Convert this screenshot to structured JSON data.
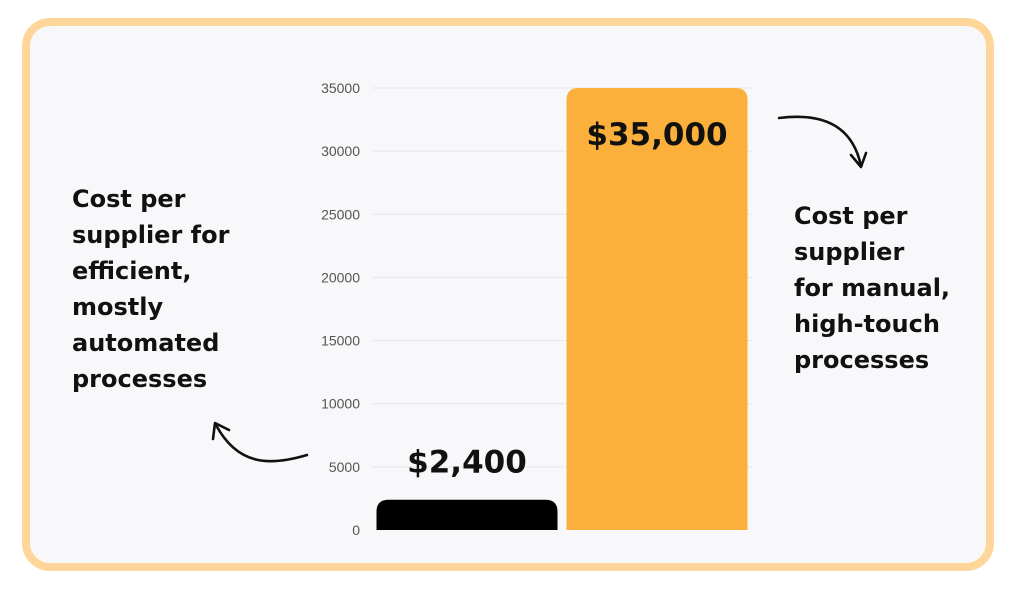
{
  "chart_data": {
    "type": "bar",
    "categories": [
      "",
      ""
    ],
    "values": [
      2400,
      35000
    ],
    "value_labels": [
      "$2,400",
      "$35,000"
    ],
    "colors": [
      "#000000",
      "#fbb03b"
    ],
    "ylim": [
      0,
      35000
    ],
    "yticks": [
      0,
      5000,
      10000,
      15000,
      20000,
      25000,
      30000,
      35000
    ],
    "grid": true,
    "title": "",
    "xlabel": "",
    "ylabel": "",
    "annotations": [
      {
        "target": "$2,400",
        "lines": [
          "Cost per",
          "supplier for",
          "efficient,",
          "mostly",
          "automated",
          "processes"
        ]
      },
      {
        "target": "$35,000",
        "lines": [
          "Cost per",
          "supplier",
          "for manual,",
          "high-touch",
          "processes"
        ]
      }
    ]
  },
  "theme": {
    "frame_border": "#ffd699",
    "background": "#f8f8fa",
    "grid": "#e6e6ea",
    "text": "#111111"
  }
}
